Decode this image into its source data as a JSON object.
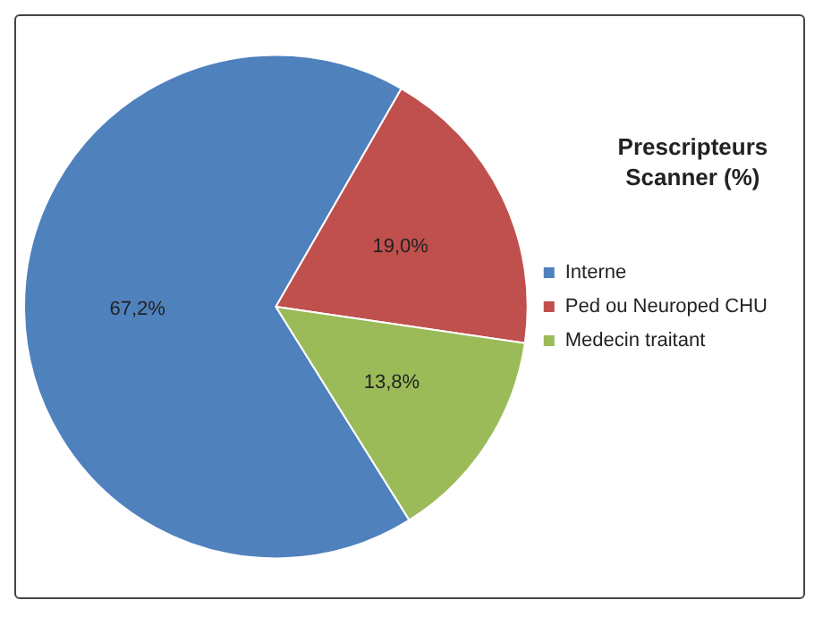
{
  "chart_data": {
    "type": "pie",
    "title": "Prescripteurs Scanner (%)",
    "categories": [
      "Interne",
      "Ped ou Neuroped CHU",
      "Medecin traitant"
    ],
    "values": [
      67.2,
      19.0,
      13.8
    ],
    "value_labels": [
      "67,2%",
      "19,0%",
      "13,8%"
    ],
    "colors": [
      "#4f81bd",
      "#c0504d",
      "#9bbb59"
    ],
    "legend": "right"
  }
}
